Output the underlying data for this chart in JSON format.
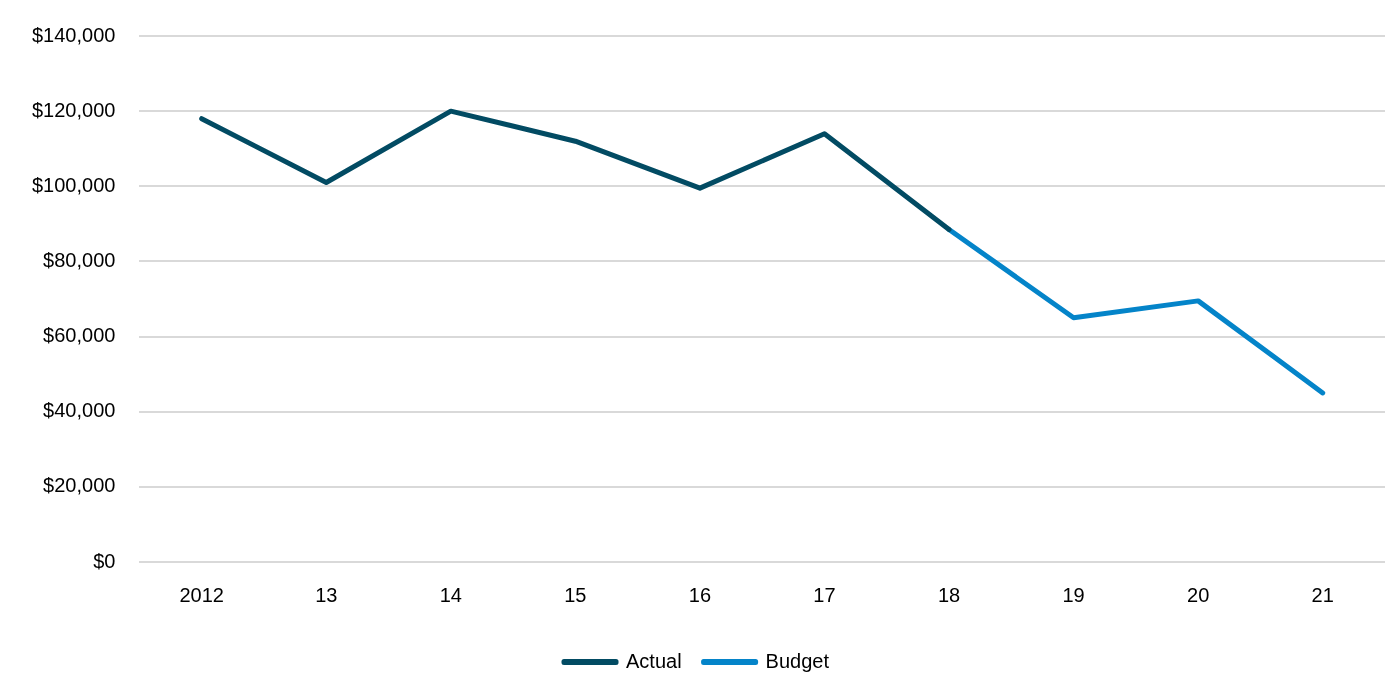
{
  "chart_data": {
    "type": "line",
    "categories": [
      "2012",
      "13",
      "14",
      "15",
      "16",
      "17",
      "18",
      "19",
      "20",
      "21"
    ],
    "series": [
      {
        "name": "Actual",
        "color": "#024b63",
        "values": [
          118000,
          101000,
          120000,
          112000,
          99500,
          114000,
          88500,
          null,
          null,
          null
        ]
      },
      {
        "name": "Budget",
        "color": "#0484c9",
        "values": [
          null,
          null,
          null,
          null,
          null,
          null,
          88500,
          65000,
          69500,
          45000
        ]
      }
    ],
    "ylim": [
      0,
      140000
    ],
    "yticks": [
      {
        "value": 0,
        "label": "$0"
      },
      {
        "value": 20000,
        "label": "$20,000"
      },
      {
        "value": 40000,
        "label": "$40,000"
      },
      {
        "value": 60000,
        "label": "$60,000"
      },
      {
        "value": 80000,
        "label": "$80,000"
      },
      {
        "value": 100000,
        "label": "$100,000"
      },
      {
        "value": 120000,
        "label": "$120,000"
      },
      {
        "value": 140000,
        "label": "$140,000"
      }
    ],
    "grid": "y",
    "legend": "bottom"
  }
}
